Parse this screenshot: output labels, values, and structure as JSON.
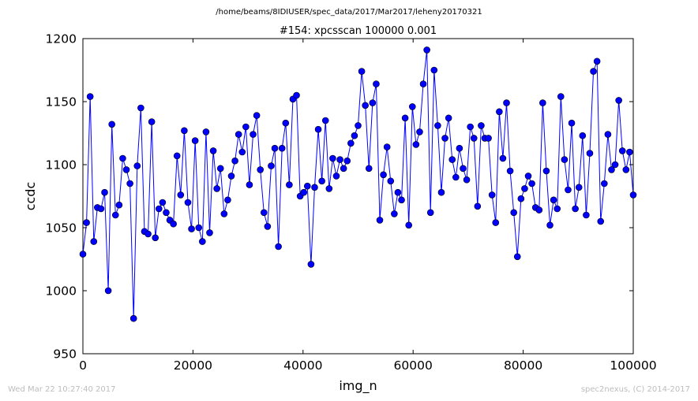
{
  "header": {
    "path": "/home/beams/8IDIUSER/spec_data/2017/Mar2017/leheny20170321"
  },
  "footer": {
    "timestamp": "Wed Mar 22 10:27:40 2017",
    "credit": "spec2nexus, (C) 2014-2017"
  },
  "colors": {
    "series": "#0000ff",
    "marker_edge": "#000000"
  },
  "chart_data": {
    "type": "line",
    "title": "#154: xpcsscan 100000 0.001",
    "xlabel": "img_n",
    "ylabel": "ccdc",
    "xlim": [
      0,
      100000
    ],
    "ylim": [
      950,
      1200
    ],
    "xticks": [
      0,
      20000,
      40000,
      60000,
      80000,
      100000
    ],
    "xtick_labels": [
      "0",
      "20000",
      "40000",
      "60000",
      "80000",
      "100000"
    ],
    "yticks": [
      950,
      1000,
      1050,
      1100,
      1150,
      1200
    ],
    "ytick_labels": [
      "950",
      "1000",
      "1050",
      "1100",
      "1150",
      "1200"
    ],
    "grid": false,
    "markers": "circle",
    "y": [
      1029,
      1054,
      1154,
      1039,
      1066,
      1065,
      1078,
      1000,
      1132,
      1060,
      1068,
      1105,
      1096,
      1085,
      978,
      1099,
      1145,
      1047,
      1045,
      1134,
      1042,
      1065,
      1070,
      1062,
      1056,
      1053,
      1107,
      1076,
      1127,
      1070,
      1049,
      1119,
      1050,
      1039,
      1126,
      1046,
      1111,
      1081,
      1097,
      1061,
      1072,
      1091,
      1103,
      1124,
      1110,
      1130,
      1084,
      1124,
      1139,
      1096,
      1062,
      1051,
      1099,
      1113,
      1035,
      1113,
      1133,
      1084,
      1152,
      1155,
      1075,
      1078,
      1083,
      1021,
      1082,
      1128,
      1087,
      1135,
      1081,
      1105,
      1091,
      1104,
      1097,
      1103,
      1117,
      1123,
      1131,
      1174,
      1147,
      1097,
      1149,
      1164,
      1056,
      1092,
      1114,
      1087,
      1061,
      1078,
      1072,
      1137,
      1052,
      1146,
      1116,
      1126,
      1164,
      1191,
      1062,
      1175,
      1131,
      1078,
      1121,
      1137,
      1104,
      1090,
      1113,
      1097,
      1088,
      1130,
      1121,
      1067,
      1131,
      1121,
      1121,
      1076,
      1054,
      1142,
      1105,
      1149,
      1095,
      1062,
      1027,
      1073,
      1081,
      1091,
      1085,
      1066,
      1064,
      1149,
      1095,
      1052,
      1072,
      1065,
      1154,
      1104,
      1080,
      1133,
      1065,
      1082,
      1123,
      1060,
      1109,
      1174,
      1182,
      1055,
      1085,
      1124,
      1096,
      1100,
      1151,
      1111,
      1096,
      1110,
      1076
    ]
  }
}
